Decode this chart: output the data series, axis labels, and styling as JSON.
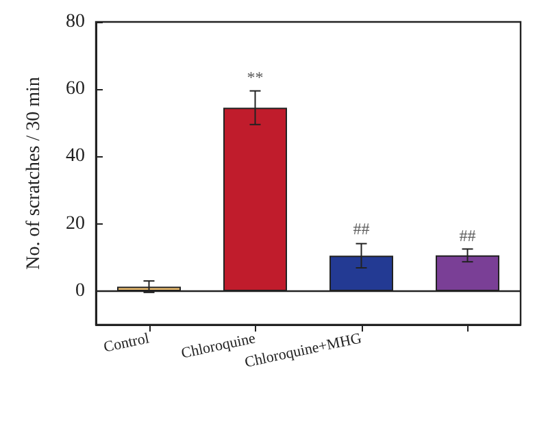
{
  "chart_data": {
    "type": "bar",
    "ylabel": "No. of scratches / 30 min",
    "categories": [
      "Control",
      "Chloroquine",
      "Chloroquine+MHG",
      null
    ],
    "values": [
      1.3,
      54.5,
      10.5,
      10.6
    ],
    "colors": [
      "#f0c070",
      "#c01c2c",
      "#233a93",
      "#7a3f96"
    ],
    "errors": [
      1.7,
      5,
      3.6,
      1.9
    ],
    "ylim": [
      -10,
      80
    ],
    "yticks": [
      0,
      20,
      40,
      60,
      80
    ],
    "ref_lines": [
      {
        "axis": "y",
        "value": 0
      }
    ],
    "annotations": [
      {
        "text": "**",
        "x": "Chloroquine",
        "y": 61
      },
      {
        "text": "##",
        "x": "Chloroquine+MHG",
        "y": 16
      },
      {
        "text": "##",
        "y": 14
      }
    ],
    "grid": false
  }
}
